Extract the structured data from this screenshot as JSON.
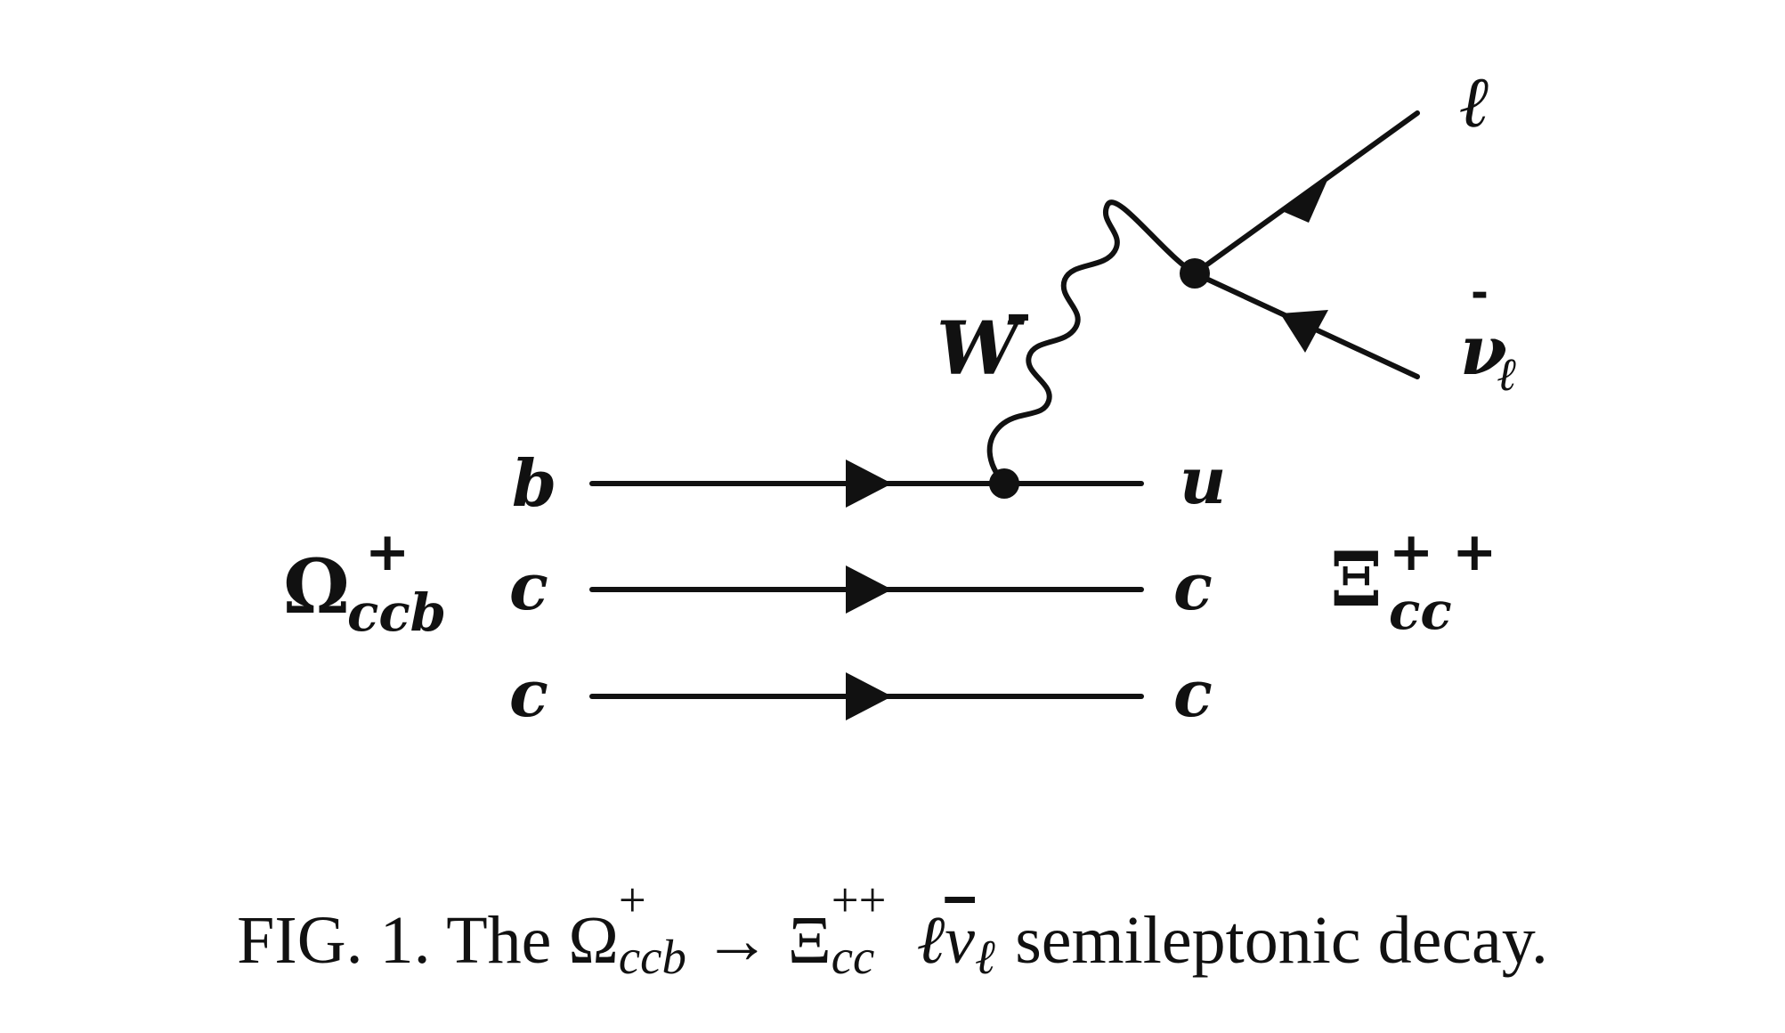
{
  "diagram": {
    "initial_hadron": {
      "symbol": "Ω",
      "subscript": "ccb",
      "superscript": "+"
    },
    "final_hadron": {
      "symbol": "Ξ",
      "subscript": "cc",
      "superscript": "+ +"
    },
    "quarks_in": [
      "b",
      "c",
      "c"
    ],
    "quarks_out": [
      "u",
      "c",
      "c"
    ],
    "boson": {
      "symbol": "W",
      "superscript": "–"
    },
    "lepton": "ℓ",
    "antineutrino": {
      "symbol": "ν",
      "bar": "-",
      "subscript": "ℓ"
    }
  },
  "caption": {
    "prefix": "FIG. 1.",
    "text_the": "The",
    "omega": "Ω",
    "omega_sup": "+",
    "omega_sub": "ccb",
    "arrow": "→",
    "xi": "Ξ",
    "xi_sup": "++",
    "xi_sub": "cc",
    "lepton": "ℓ",
    "nu": "ν",
    "nu_sub": "ℓ",
    "suffix": "semileptonic decay."
  }
}
